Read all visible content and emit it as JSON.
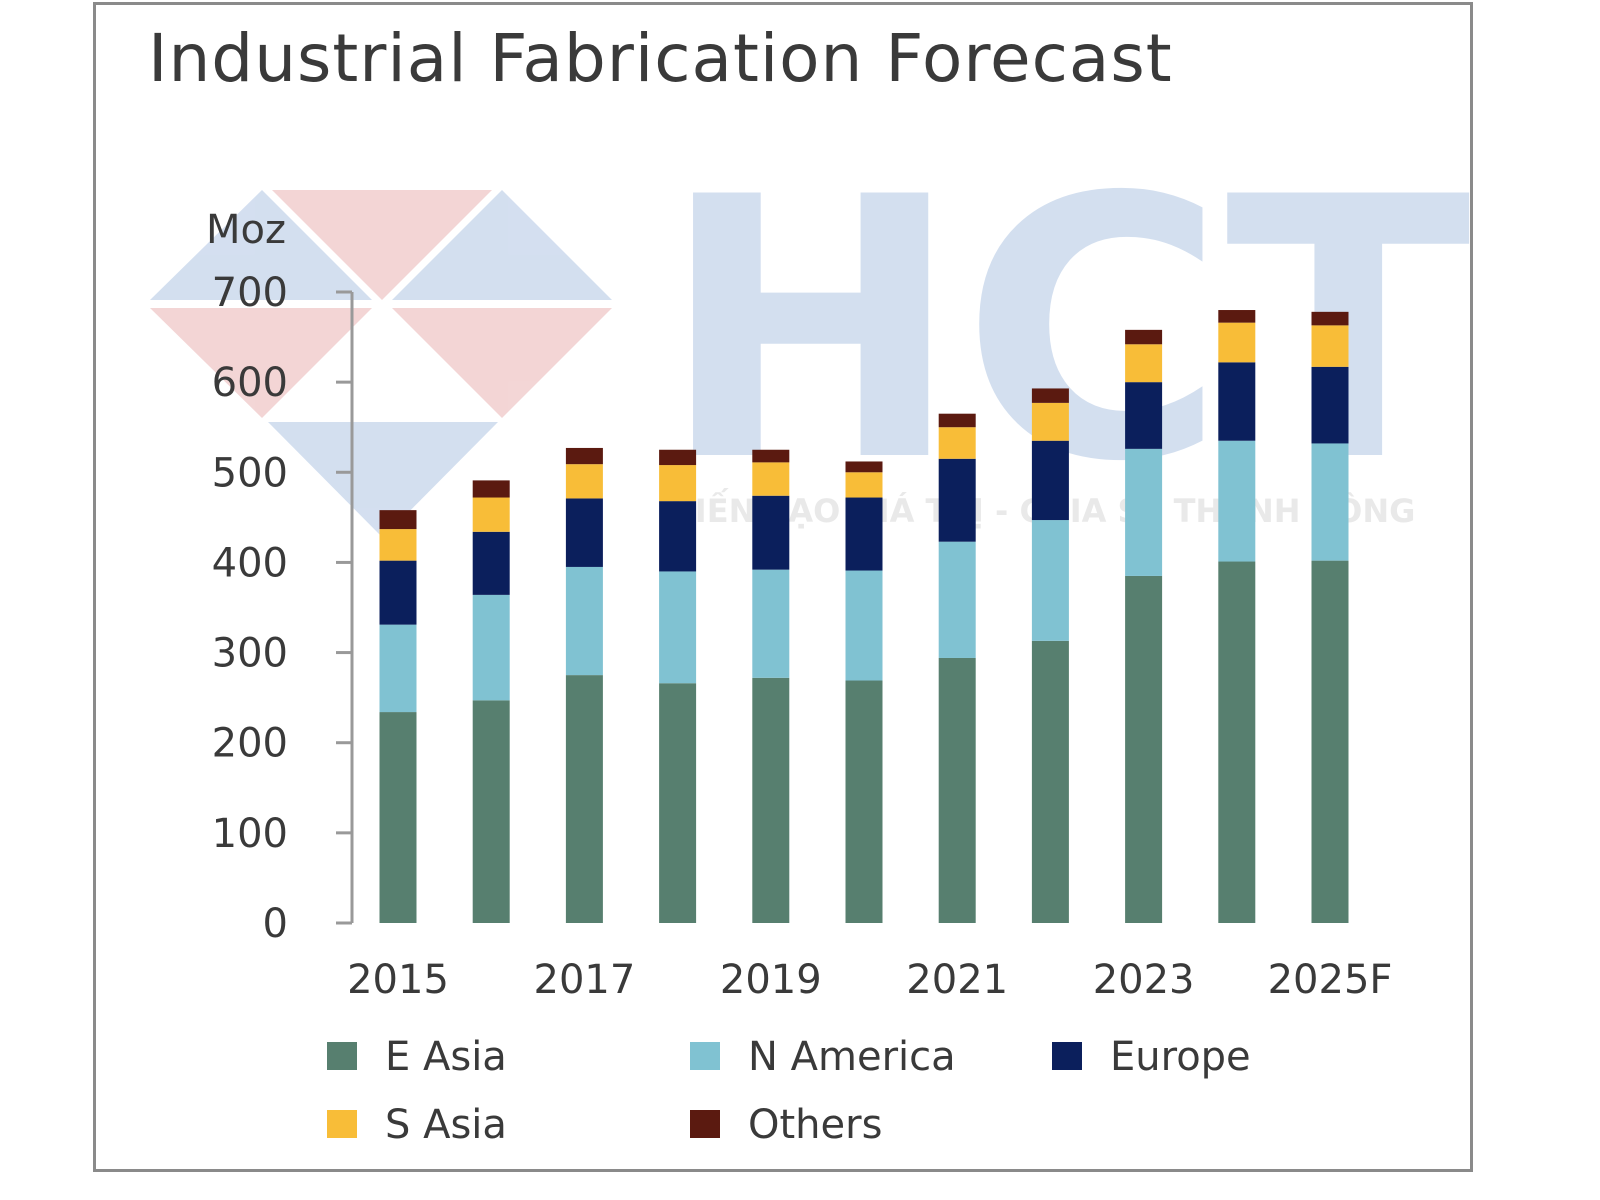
{
  "chart_data": {
    "type": "bar",
    "stacked": true,
    "title": "Industrial Fabrication Forecast",
    "ylabel": "Moz",
    "ylim": [
      0,
      700
    ],
    "yticks": [
      0,
      100,
      200,
      300,
      400,
      500,
      600,
      700
    ],
    "categories": [
      "2015",
      "2016",
      "2017",
      "2018",
      "2019",
      "2020",
      "2021",
      "2022",
      "2023",
      "2024",
      "2025F"
    ],
    "xtick_labels": [
      "2015",
      "2017",
      "2019",
      "2021",
      "2023",
      "2025F"
    ],
    "grid": false,
    "legend_position": "bottom",
    "series": [
      {
        "name": "E Asia",
        "color": "#577f6f",
        "values": [
          234,
          247,
          275,
          266,
          272,
          269,
          294,
          313,
          385,
          401,
          402
        ]
      },
      {
        "name": "N America",
        "color": "#80c2d2",
        "values": [
          97,
          117,
          120,
          124,
          120,
          122,
          129,
          134,
          141,
          134,
          130
        ]
      },
      {
        "name": "Europe",
        "color": "#0b1f5c",
        "values": [
          71,
          70,
          76,
          78,
          82,
          81,
          92,
          88,
          74,
          87,
          85
        ]
      },
      {
        "name": "S Asia",
        "color": "#f8bd38",
        "values": [
          35,
          38,
          38,
          40,
          37,
          28,
          35,
          42,
          42,
          44,
          46
        ]
      },
      {
        "name": "Others",
        "color": "#5b1a10",
        "values": [
          21,
          19,
          18,
          17,
          14,
          12,
          15,
          16,
          16,
          14,
          15
        ]
      }
    ]
  },
  "watermark": {
    "logo": "HCT",
    "slogan": "KIẾN TẠO GIÁ TRỊ - CHIA SẺ THÀNH CÔNG"
  }
}
